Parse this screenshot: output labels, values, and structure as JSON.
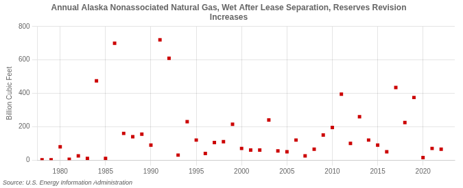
{
  "chart_data": {
    "type": "scatter",
    "title": "Annual Alaska Nonassociated Natural Gas, Wet After Lease Separation, Reserves Revision\nIncreases",
    "ylabel": "Billion Cubic Feet",
    "annotations": [
      "Source: U.S. Energy Information Administration"
    ],
    "color": "#cc0000",
    "marker": "square",
    "grid": true,
    "xlim": [
      1977.5,
      2023.5
    ],
    "xticks": [
      1980,
      1985,
      1990,
      1995,
      2000,
      2005,
      2010,
      2015,
      2020
    ],
    "ylim": [
      0,
      800
    ],
    "yticks": [
      0,
      200,
      400,
      600,
      800
    ],
    "x": [
      1978,
      1979,
      1980,
      1981,
      1982,
      1983,
      1984,
      1985,
      1986,
      1987,
      1988,
      1989,
      1990,
      1991,
      1992,
      1993,
      1994,
      1995,
      1996,
      1997,
      1998,
      1999,
      2000,
      2001,
      2002,
      2003,
      2004,
      2005,
      2006,
      2007,
      2008,
      2009,
      2010,
      2011,
      2012,
      2013,
      2014,
      2015,
      2016,
      2017,
      2018,
      2019,
      2020,
      2021,
      2022
    ],
    "values": [
      2,
      2,
      80,
      5,
      25,
      10,
      475,
      10,
      700,
      160,
      140,
      155,
      90,
      720,
      610,
      30,
      230,
      120,
      40,
      105,
      110,
      215,
      70,
      60,
      60,
      240,
      55,
      50,
      120,
      25,
      65,
      150,
      195,
      395,
      100,
      260,
      120,
      90,
      50,
      435,
      225,
      375,
      15,
      70,
      65
    ]
  }
}
